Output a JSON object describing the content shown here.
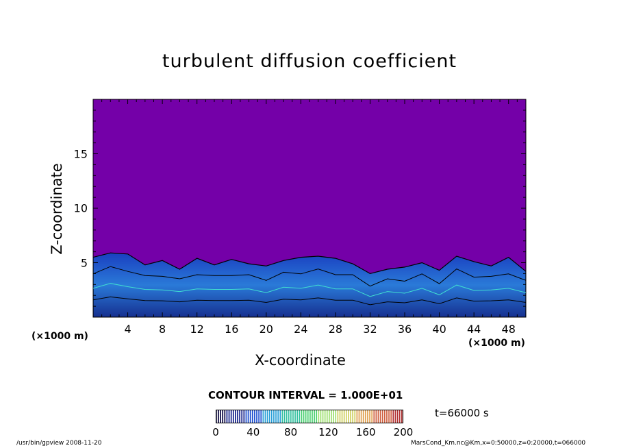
{
  "chart_data": {
    "type": "heatmap",
    "title": "turbulent diffusion coefficient",
    "xlabel": "X-coordinate",
    "ylabel": "Z-coordinate",
    "x_unit": "(×1000 m)",
    "y_unit": "(×1000 m)",
    "xlim": [
      0,
      50
    ],
    "ylim": [
      0,
      20
    ],
    "xticks": [
      4,
      8,
      12,
      16,
      20,
      24,
      28,
      32,
      36,
      40,
      44,
      48
    ],
    "yticks": [
      5,
      10,
      15
    ],
    "colorbar": {
      "min": 0,
      "max": 200,
      "ticks": [
        0,
        40,
        80,
        120,
        160,
        200
      ],
      "colors": [
        "#0a0640",
        "#13208a",
        "#1d4fd0",
        "#2aa0d8",
        "#33c0a0",
        "#4ad070",
        "#9fe070",
        "#d0d060",
        "#e0a050",
        "#d06040",
        "#b03030"
      ]
    },
    "background_color": "#7400a8",
    "boundary_layer_top": [
      5.5,
      5.9,
      5.8,
      4.8,
      5.2,
      4.4,
      5.4,
      4.8,
      5.3,
      4.9,
      4.7,
      5.2,
      5.5,
      5.6,
      5.4,
      4.9,
      4.0,
      4.4,
      4.6,
      5.0,
      4.3,
      5.6,
      5.1,
      4.7,
      5.5,
      4.2
    ],
    "contour_interval": "CONTOUR INTERVAL = 1.000E+01",
    "time": "t=66000 s"
  },
  "footer": {
    "left": "/usr/bin/gpview   2008-11-20",
    "right": "MarsCond_Km.nc@Km,x=0:50000,z=0:20000,t=066000"
  }
}
